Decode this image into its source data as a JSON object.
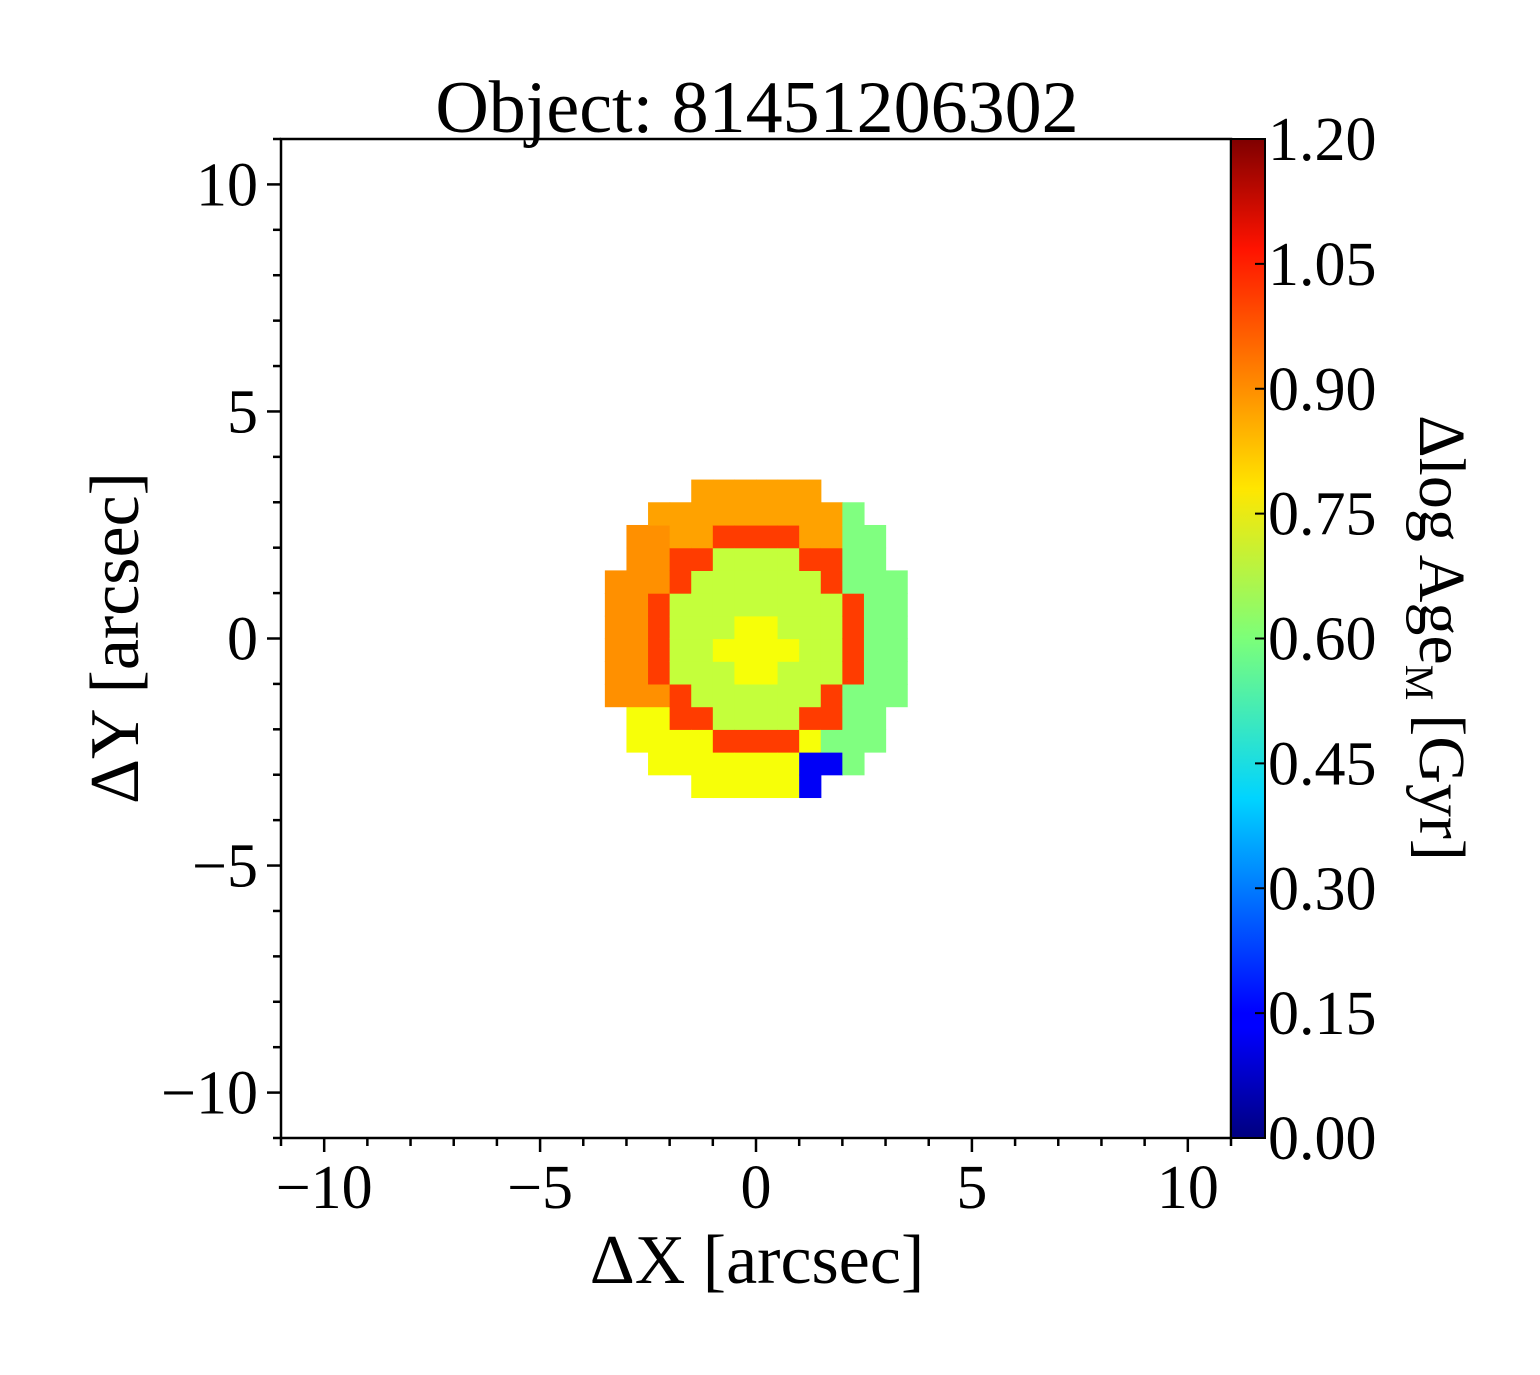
{
  "chart_data": {
    "type": "heatmap",
    "title": "Object: 81451206302",
    "xlabel": "ΔX [arcsec]",
    "ylabel": "ΔY [arcsec]",
    "xlim": [
      -11,
      11
    ],
    "ylim": [
      -11,
      11
    ],
    "x_ticks": [
      {
        "value": -10,
        "label": "−10"
      },
      {
        "value": -5,
        "label": "−5"
      },
      {
        "value": 0,
        "label": "0"
      },
      {
        "value": 5,
        "label": "5"
      },
      {
        "value": 10,
        "label": "10"
      }
    ],
    "y_ticks": [
      {
        "value": 10,
        "label": "10"
      },
      {
        "value": 5,
        "label": "5"
      },
      {
        "value": 0,
        "label": "0"
      },
      {
        "value": -5,
        "label": "−5"
      },
      {
        "value": -10,
        "label": "−10"
      }
    ],
    "colorbar": {
      "label_main": "Δlog Age",
      "label_sub": "M",
      "label_unit": "[Gyr]",
      "colormap": "jet",
      "range": [
        0.0,
        1.2
      ],
      "ticks": [
        {
          "value": 1.2,
          "label": "1.20"
        },
        {
          "value": 1.05,
          "label": "1.05"
        },
        {
          "value": 0.9,
          "label": "0.90"
        },
        {
          "value": 0.75,
          "label": "0.75"
        },
        {
          "value": 0.6,
          "label": "0.60"
        },
        {
          "value": 0.45,
          "label": "0.45"
        },
        {
          "value": 0.3,
          "label": "0.30"
        },
        {
          "value": 0.15,
          "label": "0.15"
        },
        {
          "value": 0.0,
          "label": "0.00"
        }
      ]
    },
    "map": {
      "center": [
        0.0,
        0.0
      ],
      "outer_radius": 3.6,
      "ring_center": [
        0.0,
        0.0
      ],
      "core_radius": 1.95,
      "ring_inner": 1.95,
      "ring_outer": 2.55,
      "core_value": 0.68,
      "core_peak_value": 0.74,
      "ring_value": 0.98,
      "outer_west_value": 0.88,
      "outer_north_value": 0.86,
      "outer_east_value": 0.6,
      "outer_south_value": 0.74,
      "feature": {
        "label": "",
        "value": 0.14,
        "x": [
          0.9,
          2.2
        ],
        "y": [
          -3.4,
          -2.3
        ]
      }
    }
  }
}
